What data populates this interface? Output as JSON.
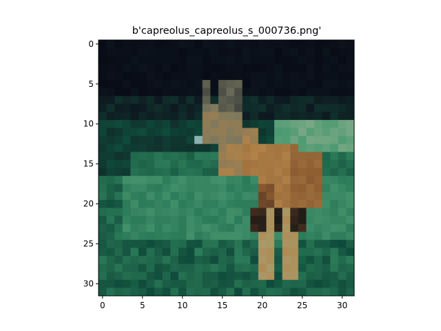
{
  "figure": {
    "title": "b'capreolus_capreolus_s_000736.png'"
  },
  "image": {
    "subject": "roe deer standing in green grass at night",
    "grid_size": [
      32,
      32
    ],
    "palette": {
      "sky_dark": "#080c16",
      "sky_mid": "#0e1820",
      "treeline": "#10302c",
      "grass_dark": "#0f4a3a",
      "grass_mid": "#2b7a58",
      "grass_light": "#4d9a72",
      "grass_pale": "#7aa886",
      "deer_body": "#b08248",
      "deer_body_dark": "#8a5a30",
      "deer_shadow": "#4a3020",
      "deer_head": "#7a7860",
      "deer_eye": "#8fb0b0",
      "deer_legs": "#a89a6a",
      "deer_belly_shadow": "#1a1a16"
    }
  },
  "axes": {
    "x_ticks": [
      "0",
      "5",
      "10",
      "15",
      "20",
      "25",
      "30"
    ],
    "y_ticks": [
      "0",
      "5",
      "10",
      "15",
      "20",
      "25",
      "30"
    ],
    "xlim": [
      -0.5,
      31.5
    ],
    "ylim": [
      31.5,
      -0.5
    ]
  }
}
